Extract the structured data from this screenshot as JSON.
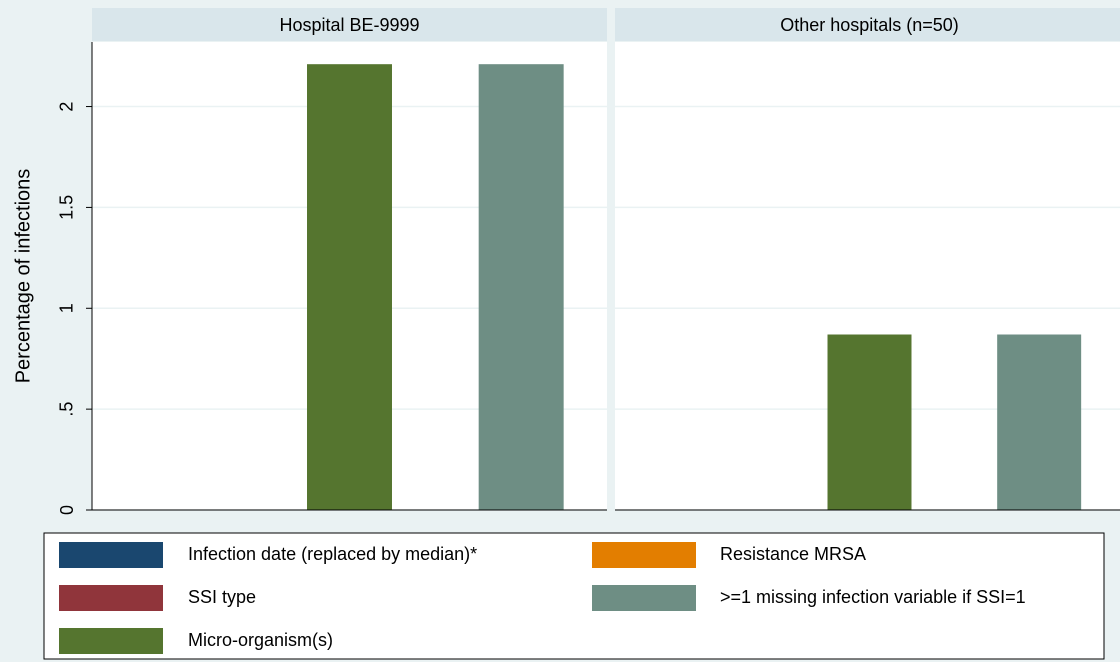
{
  "chart_data": {
    "type": "bar",
    "ylabel": "Percentage of infections",
    "categories": [
      "Hospital BE-9999",
      "Other hospitals (n=50)"
    ],
    "series": [
      {
        "name": "Infection date (replaced by median)*",
        "color": "#1a476f",
        "values": [
          0,
          0
        ]
      },
      {
        "name": "SSI type",
        "color": "#90353b",
        "values": [
          0,
          0
        ]
      },
      {
        "name": "Micro-organism(s)",
        "color": "#55752f",
        "values": [
          2.21,
          0.87
        ]
      },
      {
        "name": "Resistance MRSA",
        "color": "#e37e00",
        "values": [
          0,
          0
        ]
      },
      {
        "name": ">=1 missing infection variable if SSI=1",
        "color": "#6e8e84",
        "values": [
          2.21,
          0.87
        ]
      }
    ],
    "ylim": [
      0,
      2.32
    ],
    "yticks": [
      0,
      {
        "value": 0.5,
        "label": ".5"
      },
      1,
      1.5,
      2
    ],
    "grid": true
  }
}
